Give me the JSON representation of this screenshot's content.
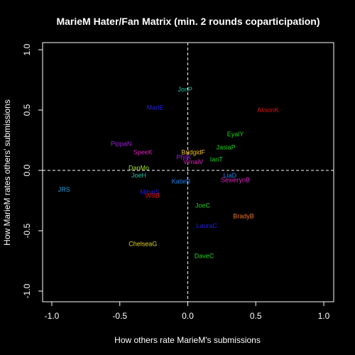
{
  "chart_data": {
    "type": "scatter",
    "title": "MarieM Hater/Fan Matrix (min. 2 rounds coparticipation)",
    "xlabel": "How others rate MarieM's submissions",
    "ylabel": "How MarieM rates others' submissions",
    "xlim": [
      -1.0,
      1.0
    ],
    "ylim": [
      -1.0,
      1.0
    ],
    "xticks": [
      "-1.0",
      "-0.5",
      "0.0",
      "0.5",
      "1.0"
    ],
    "yticks": [
      "-1.0",
      "-0.5",
      "0.0",
      "0.5",
      "1.0"
    ],
    "reference_lines": {
      "x": 0.0,
      "y": 0.0,
      "style": "dashed"
    },
    "background": "#000000",
    "foreground": "#ffffff",
    "points": [
      {
        "label": "JonP",
        "x": -0.02,
        "y": 0.67,
        "color": "#20c0a0"
      },
      {
        "label": "MarlE",
        "x": -0.24,
        "y": 0.52,
        "color": "#2020e0"
      },
      {
        "label": "AlisonK",
        "x": 0.59,
        "y": 0.5,
        "color": "#e01010"
      },
      {
        "label": "EyalY",
        "x": 0.35,
        "y": 0.3,
        "color": "#20d020"
      },
      {
        "label": "JasiaP",
        "x": 0.28,
        "y": 0.19,
        "color": "#20d020"
      },
      {
        "label": "PippaN",
        "x": -0.49,
        "y": 0.22,
        "color": "#a020e0"
      },
      {
        "label": "SpeeK",
        "x": -0.33,
        "y": 0.15,
        "color": "#e020c0"
      },
      {
        "label": "BridgidF",
        "x": 0.04,
        "y": 0.15,
        "color": "#f0c020"
      },
      {
        "label": "PhilK",
        "x": -0.03,
        "y": 0.11,
        "color": "#a020e0"
      },
      {
        "label": "IanT",
        "x": 0.21,
        "y": 0.09,
        "color": "#20d020"
      },
      {
        "label": "VimalV",
        "x": 0.04,
        "y": 0.07,
        "color": "#e020c0"
      },
      {
        "label": "DanMo",
        "x": -0.36,
        "y": 0.02,
        "color": "#a0e020"
      },
      {
        "label": "JoeH",
        "x": -0.36,
        "y": -0.04,
        "color": "#20c0a0"
      },
      {
        "label": "LiaD",
        "x": 0.31,
        "y": -0.04,
        "color": "#2080f0"
      },
      {
        "label": "KatieB",
        "x": -0.05,
        "y": -0.09,
        "color": "#2080f0"
      },
      {
        "label": "SewerynB",
        "x": 0.35,
        "y": -0.08,
        "color": "#e020c0"
      },
      {
        "label": "JRS",
        "x": -0.91,
        "y": -0.16,
        "color": "#20a0e0"
      },
      {
        "label": "MihaiS",
        "x": -0.28,
        "y": -0.18,
        "color": "#2020e0"
      },
      {
        "label": "WillB",
        "x": -0.26,
        "y": -0.21,
        "color": "#e01010"
      },
      {
        "label": "JoeC",
        "x": 0.11,
        "y": -0.29,
        "color": "#20d020"
      },
      {
        "label": "BradyB",
        "x": 0.41,
        "y": -0.38,
        "color": "#f07820"
      },
      {
        "label": "LauraC",
        "x": 0.14,
        "y": -0.46,
        "color": "#2020e0"
      },
      {
        "label": "ChelseaG",
        "x": -0.33,
        "y": -0.61,
        "color": "#e0d020"
      },
      {
        "label": "DaveC",
        "x": 0.12,
        "y": -0.71,
        "color": "#20d020"
      }
    ]
  }
}
